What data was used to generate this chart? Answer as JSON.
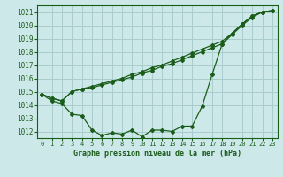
{
  "title": "Graphe pression niveau de la mer (hPa)",
  "bg_color": "#cce8e8",
  "grid_color": "#aacccc",
  "line_color": "#1a5c1a",
  "xlim": [
    -0.5,
    23.5
  ],
  "ylim": [
    1011.5,
    1021.5
  ],
  "yticks": [
    1012,
    1013,
    1014,
    1015,
    1016,
    1017,
    1018,
    1019,
    1020,
    1021
  ],
  "xticks": [
    0,
    1,
    2,
    3,
    4,
    5,
    6,
    7,
    8,
    9,
    10,
    11,
    12,
    13,
    14,
    15,
    16,
    17,
    18,
    19,
    20,
    21,
    22,
    23
  ],
  "series1": [
    1014.8,
    1014.3,
    1014.1,
    1013.3,
    1013.2,
    1012.1,
    1011.7,
    1011.9,
    1011.8,
    1012.1,
    1011.6,
    1012.1,
    1012.1,
    1012.0,
    1012.4,
    1012.4,
    1013.9,
    1016.3,
    1018.6,
    1019.4,
    1020.1,
    1020.7,
    1021.0,
    1021.1
  ],
  "series2": [
    1014.8,
    1014.5,
    1014.3,
    1015.0,
    1015.2,
    1015.3,
    1015.5,
    1015.7,
    1015.9,
    1016.1,
    1016.4,
    1016.6,
    1016.9,
    1017.1,
    1017.4,
    1017.7,
    1018.0,
    1018.3,
    1018.6,
    1019.3,
    1020.0,
    1020.6,
    1021.0,
    1021.1
  ],
  "series3": [
    1014.8,
    1014.5,
    1014.3,
    1015.0,
    1015.2,
    1015.4,
    1015.6,
    1015.8,
    1016.0,
    1016.3,
    1016.5,
    1016.8,
    1017.0,
    1017.3,
    1017.6,
    1017.9,
    1018.2,
    1018.5,
    1018.8,
    1019.4,
    1020.1,
    1020.7,
    1021.0,
    1021.1
  ]
}
